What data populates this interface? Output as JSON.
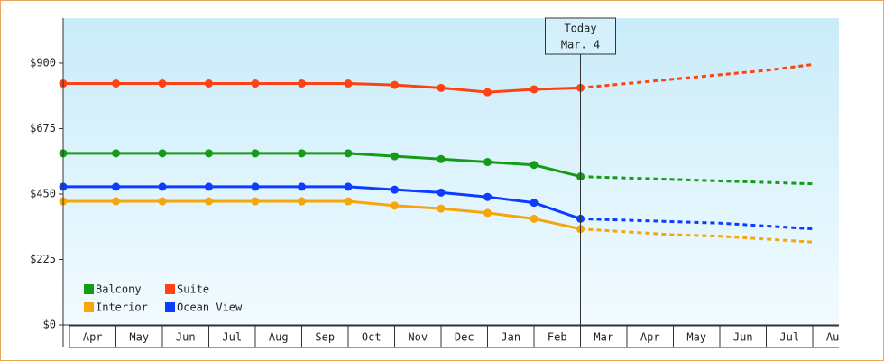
{
  "chart_data": {
    "type": "line",
    "categories": [
      "Apr",
      "May",
      "Jun",
      "Jul",
      "Aug",
      "Sep",
      "Oct",
      "Nov",
      "Dec",
      "Jan",
      "Feb",
      "Mar",
      "Apr",
      "May",
      "Jun",
      "Jul",
      "Aug"
    ],
    "series": [
      {
        "name": "Balcony",
        "color": "#169b16",
        "values": [
          590,
          590,
          590,
          590,
          590,
          590,
          590,
          580,
          570,
          560,
          550,
          510,
          505,
          500,
          495,
          490,
          485
        ]
      },
      {
        "name": "Suite",
        "color": "#ff4214",
        "values": [
          830,
          830,
          830,
          830,
          830,
          830,
          830,
          825,
          815,
          800,
          810,
          815,
          830,
          845,
          860,
          875,
          895
        ]
      },
      {
        "name": "Interior",
        "color": "#f6a60a",
        "values": [
          425,
          425,
          425,
          425,
          425,
          425,
          425,
          410,
          400,
          385,
          365,
          330,
          320,
          310,
          305,
          295,
          285
        ]
      },
      {
        "name": "Ocean View",
        "color": "#0b3cff",
        "values": [
          475,
          475,
          475,
          475,
          475,
          475,
          475,
          465,
          455,
          440,
          420,
          365,
          360,
          355,
          350,
          340,
          330
        ]
      }
    ],
    "ylim": [
      0,
      1055
    ],
    "yticks": [
      {
        "value": 0,
        "label": "$0"
      },
      {
        "value": 225,
        "label": "$225"
      },
      {
        "value": 450,
        "label": "$450"
      },
      {
        "value": 675,
        "label": "$675"
      },
      {
        "value": 900,
        "label": "$900"
      }
    ],
    "annotation": {
      "label": "Today",
      "date": "Mar. 4",
      "category": 11
    },
    "legend": "lower left"
  }
}
